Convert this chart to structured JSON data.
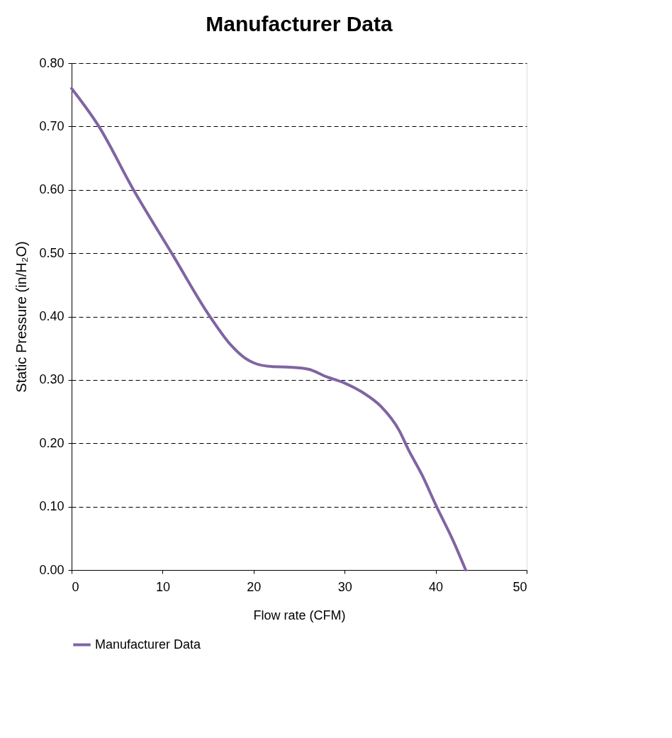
{
  "chart_data": {
    "type": "line",
    "title": "Manufacturer Data",
    "xlabel": "Flow rate (CFM)",
    "ylabel": "Static Pressure (in/H₂O)",
    "series": [
      {
        "name": "Manufacturer Data",
        "color": "#8064a2",
        "x": [
          0,
          3,
          6.8,
          11,
          15.2,
          17.5,
          19,
          20,
          22,
          24,
          26,
          28,
          30,
          32,
          34,
          36,
          37,
          38.5,
          40.1,
          41.8,
          43.3
        ],
        "values": [
          0.76,
          0.7,
          0.6,
          0.5,
          0.4,
          0.355,
          0.335,
          0.327,
          0.321,
          0.32,
          0.317,
          0.305,
          0.295,
          0.28,
          0.258,
          0.22,
          0.19,
          0.15,
          0.1,
          0.05,
          0.0
        ]
      }
    ],
    "xlim": [
      0,
      50
    ],
    "xticks": [
      0,
      10,
      20,
      30,
      40,
      50
    ],
    "ylim": [
      0,
      0.8
    ],
    "yticks": [
      {
        "value": 0,
        "label": "0.00"
      },
      {
        "value": 0.1,
        "label": "0.10"
      },
      {
        "value": 0.2,
        "label": "0.20"
      },
      {
        "value": 0.3,
        "label": "0.30"
      },
      {
        "value": 0.4,
        "label": "0.40"
      },
      {
        "value": 0.5,
        "label": "0.50"
      },
      {
        "value": 0.6,
        "label": "0.60"
      },
      {
        "value": 0.7,
        "label": "0.70"
      },
      {
        "value": 0.8,
        "label": "0.80"
      }
    ],
    "grid": "y",
    "legend": "bottom",
    "marker": "none",
    "line_style": "solid"
  }
}
